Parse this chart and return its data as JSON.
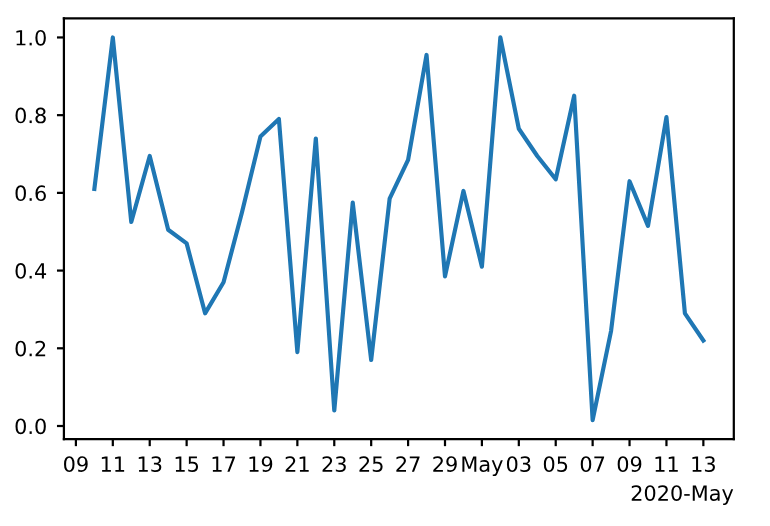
{
  "chart_data": {
    "type": "line",
    "x": [
      "2020-04-10",
      "2020-04-11",
      "2020-04-12",
      "2020-04-13",
      "2020-04-14",
      "2020-04-15",
      "2020-04-16",
      "2020-04-17",
      "2020-04-18",
      "2020-04-19",
      "2020-04-20",
      "2020-04-21",
      "2020-04-22",
      "2020-04-23",
      "2020-04-24",
      "2020-04-25",
      "2020-04-26",
      "2020-04-27",
      "2020-04-28",
      "2020-04-29",
      "2020-04-30",
      "2020-05-01",
      "2020-05-02",
      "2020-05-03",
      "2020-05-04",
      "2020-05-05",
      "2020-05-06",
      "2020-05-07",
      "2020-05-08",
      "2020-05-09",
      "2020-05-10",
      "2020-05-11",
      "2020-05-12",
      "2020-05-13"
    ],
    "series": [
      {
        "color": "#1f77b4",
        "values": [
          0.61,
          1.0,
          0.525,
          0.695,
          0.505,
          0.47,
          0.29,
          0.37,
          0.55,
          0.745,
          0.79,
          0.19,
          0.74,
          0.04,
          0.575,
          0.17,
          0.585,
          0.685,
          0.955,
          0.385,
          0.605,
          0.41,
          1.0,
          0.765,
          0.695,
          0.635,
          0.85,
          0.015,
          0.245,
          0.63,
          0.515,
          0.795,
          0.29,
          0.22
        ]
      }
    ],
    "xlim": [
      "2020-04-08T08:24",
      "2020-05-14T15:36"
    ],
    "xticks": [
      {
        "value": "2020-04-09",
        "label": "09"
      },
      {
        "value": "2020-04-11",
        "label": "11"
      },
      {
        "value": "2020-04-13",
        "label": "13"
      },
      {
        "value": "2020-04-15",
        "label": "15"
      },
      {
        "value": "2020-04-17",
        "label": "17"
      },
      {
        "value": "2020-04-19",
        "label": "19"
      },
      {
        "value": "2020-04-21",
        "label": "21"
      },
      {
        "value": "2020-04-23",
        "label": "23"
      },
      {
        "value": "2020-04-25",
        "label": "25"
      },
      {
        "value": "2020-04-27",
        "label": "27"
      },
      {
        "value": "2020-04-29",
        "label": "29"
      },
      {
        "value": "2020-05-01",
        "label": "May"
      },
      {
        "value": "2020-05-03",
        "label": "03"
      },
      {
        "value": "2020-05-05",
        "label": "05"
      },
      {
        "value": "2020-05-07",
        "label": "07"
      },
      {
        "value": "2020-05-09",
        "label": "09"
      },
      {
        "value": "2020-05-11",
        "label": "11"
      },
      {
        "value": "2020-05-13",
        "label": "13"
      }
    ],
    "ylim": [
      -0.034,
      1.049
    ],
    "yticks": [
      {
        "value": 0.0,
        "label": "0.0"
      },
      {
        "value": 0.2,
        "label": "0.2"
      },
      {
        "value": 0.4,
        "label": "0.4"
      },
      {
        "value": 0.6,
        "label": "0.6"
      },
      {
        "value": 0.8,
        "label": "0.8"
      },
      {
        "value": 1.0,
        "label": "1.0"
      }
    ],
    "annotations": [
      "2020-May"
    ],
    "grid": false,
    "legend": false
  }
}
